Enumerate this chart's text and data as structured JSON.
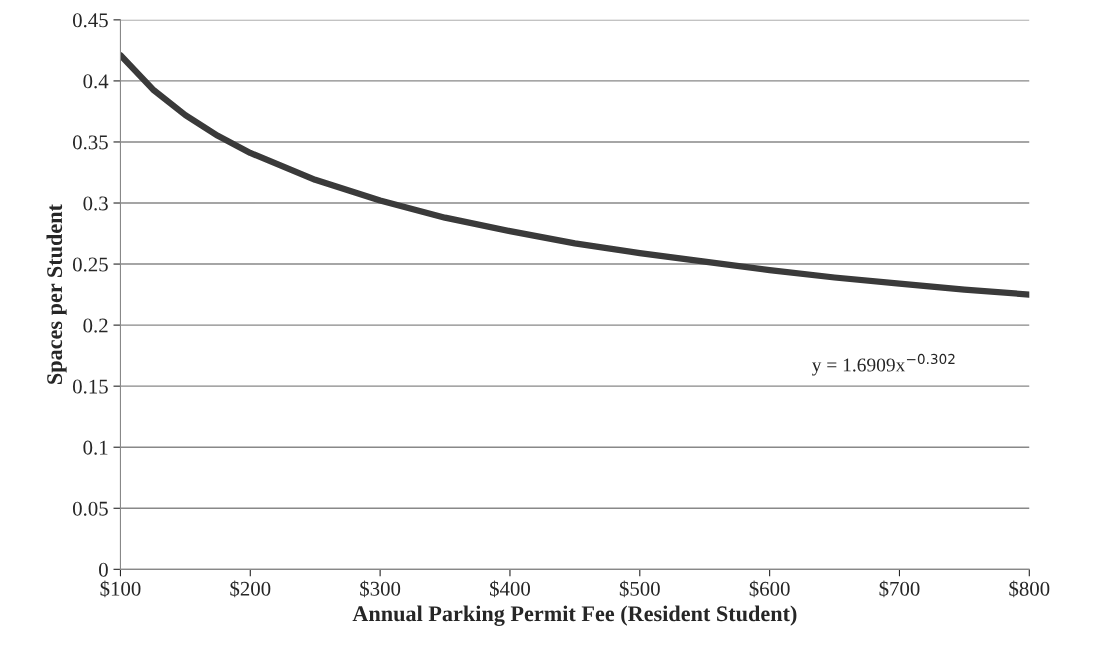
{
  "chart_data": {
    "type": "line",
    "xlabel": "Annual Parking Permit Fee (Resident Student)",
    "ylabel": "Spaces per Student",
    "x": [
      100,
      125,
      150,
      175,
      200,
      250,
      300,
      350,
      400,
      450,
      500,
      550,
      600,
      650,
      700,
      750,
      800
    ],
    "series": [
      {
        "color": "#3a3a3a",
        "values": [
          0.421,
          0.393,
          0.372,
          0.355,
          0.341,
          0.319,
          0.302,
          0.288,
          0.277,
          0.267,
          0.259,
          0.252,
          0.245,
          0.239,
          0.234,
          0.229,
          0.225
        ]
      }
    ],
    "xlim": [
      100,
      800
    ],
    "xticks": [
      {
        "value": 100,
        "label": "$100"
      },
      {
        "value": 200,
        "label": "$200"
      },
      {
        "value": 300,
        "label": "$300"
      },
      {
        "value": 400,
        "label": "$400"
      },
      {
        "value": 500,
        "label": "$500"
      },
      {
        "value": 600,
        "label": "$600"
      },
      {
        "value": 700,
        "label": "$700"
      },
      {
        "value": 800,
        "label": "$800"
      }
    ],
    "ylim": [
      0,
      0.45
    ],
    "yticks": [
      0,
      0.05,
      0.1,
      0.15,
      0.2,
      0.25,
      0.3,
      0.35,
      0.4,
      0.45
    ],
    "grid": "y",
    "marker": "none",
    "line_style": "solid",
    "legend": false,
    "annotations": [
      "y = 1.6909x$^{−0.302}$"
    ]
  }
}
